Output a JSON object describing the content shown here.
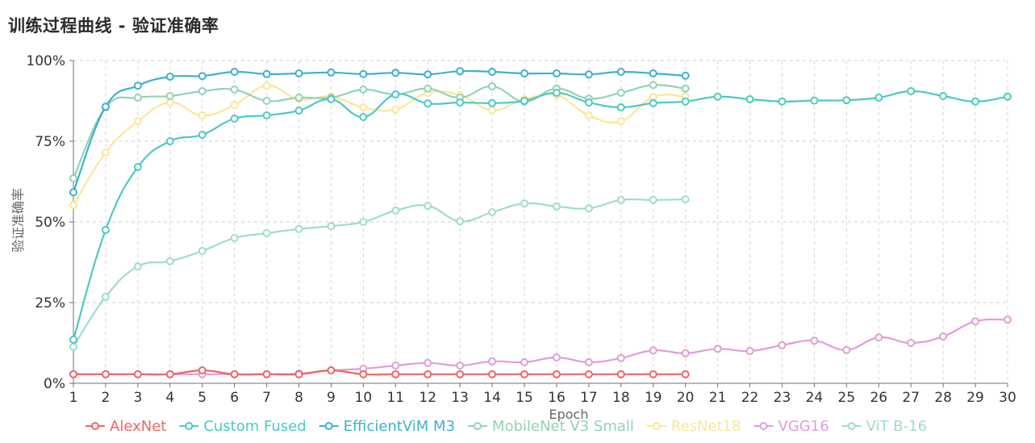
{
  "title": "训练过程曲线 - 验证准确率",
  "chart_data": {
    "type": "line",
    "xlabel": "Epoch",
    "ylabel": "验证准确率",
    "ylim": [
      0,
      1
    ],
    "xlim": [
      1,
      30
    ],
    "y_ticks": [
      "0%",
      "25%",
      "50%",
      "75%",
      "100%"
    ],
    "grid": true,
    "legend_position": "bottom",
    "series": [
      {
        "name": "AlexNet",
        "color": "#ee6666",
        "x": [
          1,
          2,
          3,
          4,
          5,
          6,
          7,
          8,
          9,
          10,
          11,
          12,
          13,
          14,
          15,
          16,
          17,
          18,
          19,
          20
        ],
        "values": [
          0.028,
          0.028,
          0.028,
          0.028,
          0.04,
          0.028,
          0.028,
          0.028,
          0.04,
          0.028,
          0.028,
          0.028,
          0.028,
          0.028,
          0.028,
          0.028,
          0.028,
          0.028,
          0.028,
          0.028
        ]
      },
      {
        "name": "Custom Fused",
        "color": "#4ec9c4",
        "x": [
          1,
          2,
          3,
          4,
          5,
          6,
          7,
          8,
          9,
          10,
          11,
          12,
          13,
          14,
          15,
          16,
          17,
          18,
          19,
          20,
          21,
          22,
          23,
          24,
          25,
          26,
          27,
          28,
          29,
          30
        ],
        "values": [
          0.135,
          0.475,
          0.67,
          0.75,
          0.77,
          0.82,
          0.83,
          0.845,
          0.88,
          0.825,
          0.895,
          0.867,
          0.87,
          0.868,
          0.875,
          0.9,
          0.87,
          0.855,
          0.868,
          0.873,
          0.888,
          0.88,
          0.873,
          0.876,
          0.877,
          0.885,
          0.905,
          0.89,
          0.873,
          0.888
        ]
      },
      {
        "name": "EfficientViM M3",
        "color": "#3fb1cb",
        "x": [
          1,
          2,
          3,
          4,
          5,
          6,
          7,
          8,
          9,
          10,
          11,
          12,
          13,
          14,
          15,
          16,
          17,
          18,
          19,
          20
        ],
        "values": [
          0.592,
          0.857,
          0.922,
          0.95,
          0.952,
          0.965,
          0.958,
          0.96,
          0.963,
          0.958,
          0.962,
          0.957,
          0.967,
          0.965,
          0.96,
          0.96,
          0.957,
          0.965,
          0.96,
          0.953
        ]
      },
      {
        "name": "MobileNet V3 Small",
        "color": "#93d3b3",
        "x": [
          1,
          2,
          3,
          4,
          5,
          6,
          7,
          8,
          9,
          10,
          11,
          12,
          13,
          14,
          15,
          16,
          17,
          18,
          19,
          20
        ],
        "values": [
          0.635,
          0.855,
          0.885,
          0.89,
          0.905,
          0.91,
          0.875,
          0.885,
          0.885,
          0.91,
          0.895,
          0.913,
          0.885,
          0.92,
          0.873,
          0.913,
          0.882,
          0.9,
          0.924,
          0.913
        ]
      },
      {
        "name": "ResNet18",
        "color": "#fce699",
        "x": [
          1,
          2,
          3,
          4,
          5,
          6,
          7,
          8,
          9,
          10,
          11,
          12,
          13,
          14,
          15,
          16,
          17,
          18,
          19,
          20
        ],
        "values": [
          0.552,
          0.715,
          0.812,
          0.87,
          0.83,
          0.862,
          0.922,
          0.88,
          0.888,
          0.855,
          0.848,
          0.9,
          0.893,
          0.846,
          0.88,
          0.893,
          0.83,
          0.812,
          0.887,
          0.888
        ]
      },
      {
        "name": "VGG16",
        "color": "#df9ed9",
        "x": [
          1,
          2,
          3,
          4,
          5,
          6,
          7,
          8,
          9,
          10,
          11,
          12,
          13,
          14,
          15,
          16,
          17,
          18,
          19,
          20,
          21,
          22,
          23,
          24,
          25,
          26,
          27,
          28,
          29,
          30
        ],
        "values": [
          0.028,
          0.028,
          0.028,
          0.028,
          0.028,
          0.028,
          0.028,
          0.03,
          0.04,
          0.045,
          0.055,
          0.063,
          0.055,
          0.068,
          0.065,
          0.08,
          0.065,
          0.078,
          0.102,
          0.093,
          0.107,
          0.1,
          0.118,
          0.132,
          0.103,
          0.142,
          0.125,
          0.145,
          0.192,
          0.197
        ]
      },
      {
        "name": "ViT B-16",
        "color": "#9fdccd",
        "x": [
          1,
          2,
          3,
          4,
          5,
          6,
          7,
          8,
          9,
          10,
          11,
          12,
          13,
          14,
          15,
          16,
          17,
          18,
          19,
          20
        ],
        "values": [
          0.113,
          0.268,
          0.362,
          0.378,
          0.41,
          0.45,
          0.465,
          0.478,
          0.487,
          0.5,
          0.535,
          0.55,
          0.502,
          0.53,
          0.557,
          0.548,
          0.542,
          0.568,
          0.568,
          0.57
        ]
      }
    ]
  }
}
